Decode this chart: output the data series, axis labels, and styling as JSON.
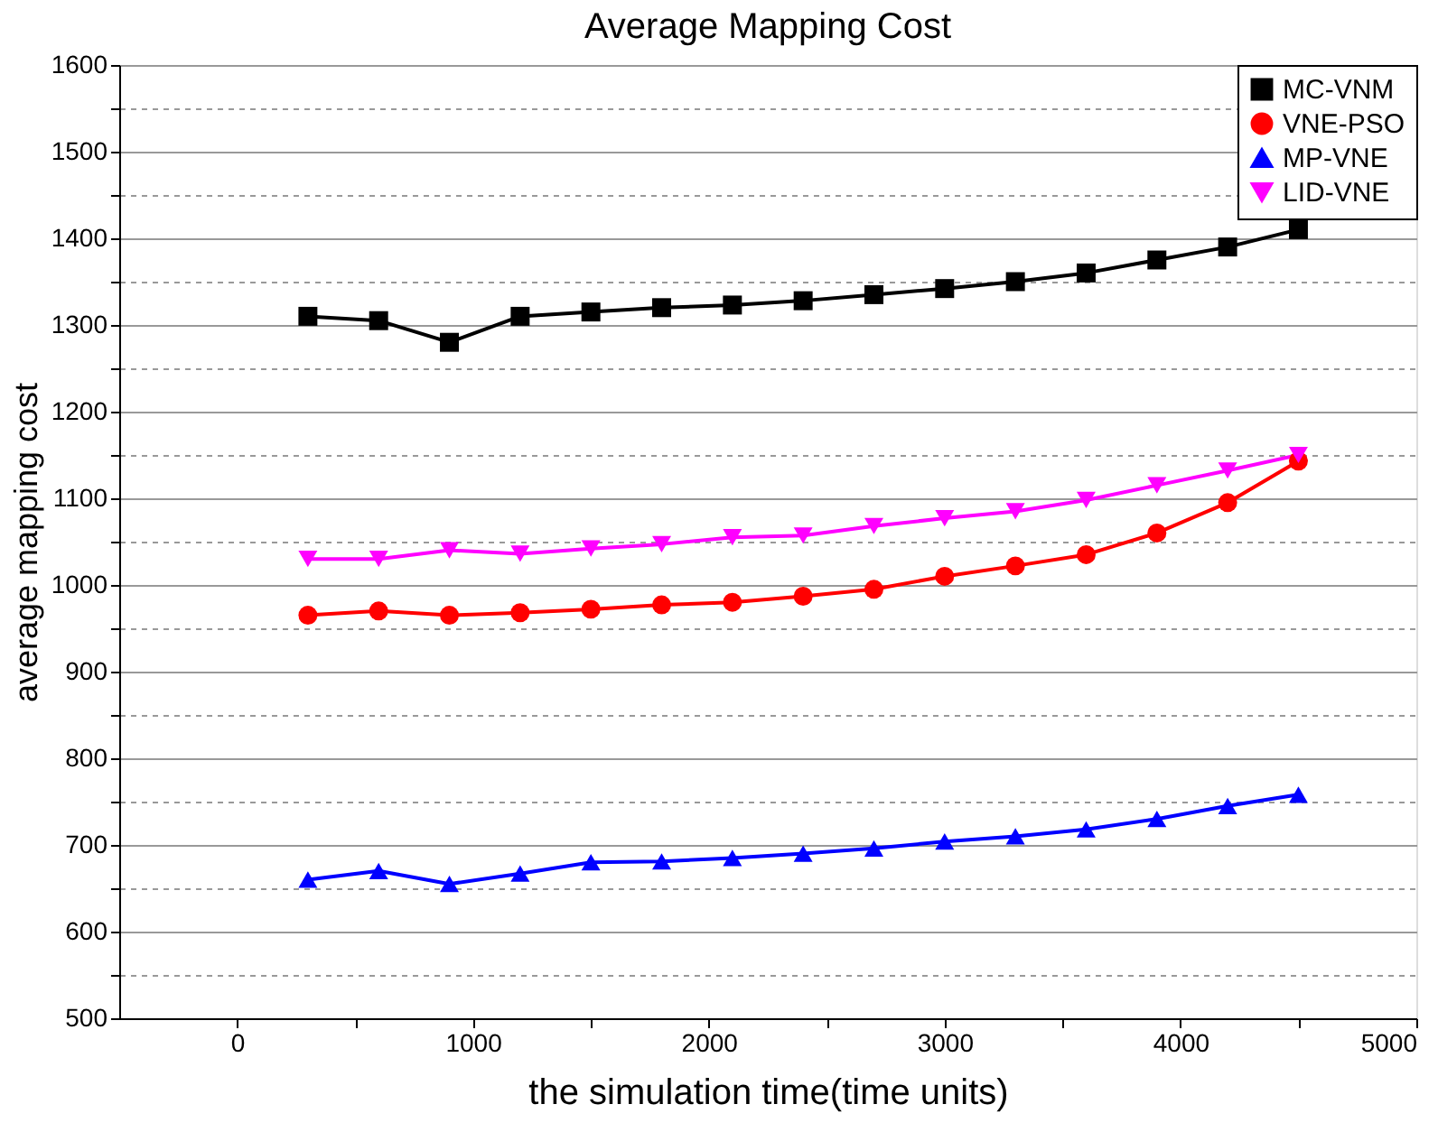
{
  "chart_data": {
    "type": "line",
    "title": "Average Mapping Cost",
    "xlabel": "the simulation time(time units)",
    "ylabel": "average mapping cost",
    "x": [
      300,
      600,
      900,
      1200,
      1500,
      1800,
      2100,
      2400,
      2700,
      3000,
      3300,
      3600,
      3900,
      4200,
      4500
    ],
    "series": [
      {
        "name": "MC-VNM",
        "color": "#000000",
        "marker": "square",
        "values": [
          1310,
          1305,
          1280,
          1310,
          1315,
          1320,
          1323,
          1328,
          1335,
          1342,
          1350,
          1360,
          1375,
          1390,
          1410
        ]
      },
      {
        "name": "VNE-PSO",
        "color": "#ff0000",
        "marker": "circle",
        "values": [
          965,
          970,
          965,
          968,
          972,
          977,
          980,
          987,
          995,
          1010,
          1022,
          1035,
          1060,
          1095,
          1143
        ]
      },
      {
        "name": "MP-VNE",
        "color": "#0000ff",
        "marker": "triangle",
        "values": [
          660,
          670,
          655,
          667,
          680,
          681,
          685,
          690,
          696,
          704,
          710,
          718,
          730,
          745,
          758
        ]
      },
      {
        "name": "LID-VNE",
        "color": "#ff00ff",
        "marker": "triangle-down",
        "values": [
          1030,
          1030,
          1040,
          1036,
          1042,
          1047,
          1055,
          1057,
          1068,
          1077,
          1085,
          1098,
          1115,
          1132,
          1150
        ]
      }
    ],
    "xlim": [
      -500,
      5000
    ],
    "xticks": [
      0,
      {
        "value": 500,
        "label": null
      },
      1000,
      {
        "value": 1500,
        "label": null
      },
      2000,
      {
        "value": 2500,
        "label": null
      },
      3000,
      {
        "value": 3500,
        "label": null
      },
      4000,
      {
        "value": 4500,
        "label": null
      },
      5000
    ],
    "ylim": [
      500,
      1600
    ],
    "yticks": [
      500,
      {
        "value": 550,
        "label": null
      },
      600,
      {
        "value": 650,
        "label": null
      },
      700,
      {
        "value": 750,
        "label": null
      },
      800,
      {
        "value": 850,
        "label": null
      },
      900,
      {
        "value": 950,
        "label": null
      },
      1000,
      {
        "value": 1050,
        "label": null
      },
      1100,
      {
        "value": 1150,
        "label": null
      },
      1200,
      {
        "value": 1250,
        "label": null
      },
      1300,
      {
        "value": 1350,
        "label": null
      },
      1400,
      {
        "value": 1450,
        "label": null
      },
      1500,
      {
        "value": 1550,
        "label": null
      },
      1600
    ],
    "grid": "y",
    "legend": "top right",
    "line_style": "solid"
  }
}
